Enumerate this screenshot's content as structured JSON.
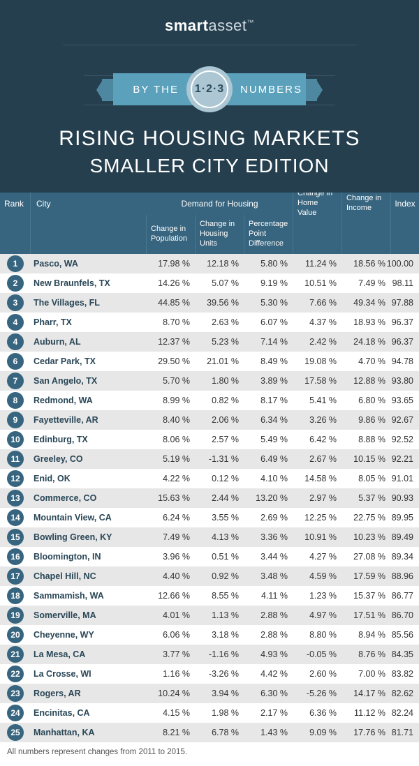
{
  "brand": {
    "bold": "smart",
    "light": "asset",
    "tm": "™"
  },
  "ribbon": {
    "first": "BY THE",
    "second": "NUMBERS",
    "medal": "1·2·3"
  },
  "title": "RISING HOUSING MARKETS",
  "subtitle": "SMALLER CITY EDITION",
  "colors": {
    "header_bg": "#253f4f",
    "table_header_bg": "#37647e",
    "row_even": "#e7e7e7",
    "row_odd": "#ffffff",
    "accent": "#5ba1bc"
  },
  "columns": {
    "rank": "Rank",
    "city": "City",
    "demand": "Demand for Housing",
    "pop": "Change in Population",
    "hu": "Change in Housing Units",
    "ppd": "Percentage Point Difference",
    "home": "Change in Home Value",
    "inc": "Change in Income",
    "idx": "Index"
  },
  "footnote": "All numbers represent changes from 2011 to 2015.",
  "rows": [
    {
      "rank": "1",
      "city": "Pasco, WA",
      "pop": "17.98 %",
      "hu": "12.18 %",
      "ppd": "5.80 %",
      "home": "11.24 %",
      "inc": "18.56 %",
      "idx": "100.00"
    },
    {
      "rank": "2",
      "city": "New Braunfels, TX",
      "pop": "14.26 %",
      "hu": "5.07 %",
      "ppd": "9.19 %",
      "home": "10.51 %",
      "inc": "7.49 %",
      "idx": "98.11"
    },
    {
      "rank": "3",
      "city": "The Villages, FL",
      "pop": "44.85 %",
      "hu": "39.56 %",
      "ppd": "5.30 %",
      "home": "7.66 %",
      "inc": "49.34 %",
      "idx": "97.88"
    },
    {
      "rank": "4",
      "city": "Pharr, TX",
      "pop": "8.70 %",
      "hu": "2.63 %",
      "ppd": "6.07 %",
      "home": "4.37 %",
      "inc": "18.93 %",
      "idx": "96.37"
    },
    {
      "rank": "4",
      "city": "Auburn, AL",
      "pop": "12.37 %",
      "hu": "5.23 %",
      "ppd": "7.14 %",
      "home": "2.42 %",
      "inc": "24.18 %",
      "idx": "96.37"
    },
    {
      "rank": "6",
      "city": "Cedar Park, TX",
      "pop": "29.50 %",
      "hu": "21.01 %",
      "ppd": "8.49 %",
      "home": "19.08 %",
      "inc": "4.70 %",
      "idx": "94.78"
    },
    {
      "rank": "7",
      "city": "San Angelo, TX",
      "pop": "5.70 %",
      "hu": "1.80 %",
      "ppd": "3.89 %",
      "home": "17.58 %",
      "inc": "12.88 %",
      "idx": "93.80"
    },
    {
      "rank": "8",
      "city": "Redmond, WA",
      "pop": "8.99 %",
      "hu": "0.82 %",
      "ppd": "8.17 %",
      "home": "5.41 %",
      "inc": "6.80 %",
      "idx": "93.65"
    },
    {
      "rank": "9",
      "city": "Fayetteville, AR",
      "pop": "8.40 %",
      "hu": "2.06 %",
      "ppd": "6.34 %",
      "home": "3.26 %",
      "inc": "9.86 %",
      "idx": "92.67"
    },
    {
      "rank": "10",
      "city": "Edinburg, TX",
      "pop": "8.06 %",
      "hu": "2.57 %",
      "ppd": "5.49 %",
      "home": "6.42 %",
      "inc": "8.88 %",
      "idx": "92.52"
    },
    {
      "rank": "11",
      "city": "Greeley, CO",
      "pop": "5.19 %",
      "hu": "-1.31 %",
      "ppd": "6.49 %",
      "home": "2.67 %",
      "inc": "10.15 %",
      "idx": "92.21"
    },
    {
      "rank": "12",
      "city": "Enid, OK",
      "pop": "4.22 %",
      "hu": "0.12 %",
      "ppd": "4.10 %",
      "home": "14.58 %",
      "inc": "8.05 %",
      "idx": "91.01"
    },
    {
      "rank": "13",
      "city": "Commerce, CO",
      "pop": "15.63 %",
      "hu": "2.44 %",
      "ppd": "13.20 %",
      "home": "2.97 %",
      "inc": "5.37 %",
      "idx": "90.93"
    },
    {
      "rank": "14",
      "city": "Mountain View, CA",
      "pop": "6.24 %",
      "hu": "3.55 %",
      "ppd": "2.69 %",
      "home": "12.25 %",
      "inc": "22.75 %",
      "idx": "89.95"
    },
    {
      "rank": "15",
      "city": "Bowling Green, KY",
      "pop": "7.49 %",
      "hu": "4.13 %",
      "ppd": "3.36 %",
      "home": "10.91 %",
      "inc": "10.23 %",
      "idx": "89.49"
    },
    {
      "rank": "16",
      "city": "Bloomington, IN",
      "pop": "3.96 %",
      "hu": "0.51 %",
      "ppd": "3.44 %",
      "home": "4.27 %",
      "inc": "27.08 %",
      "idx": "89.34"
    },
    {
      "rank": "17",
      "city": "Chapel Hill, NC",
      "pop": "4.40 %",
      "hu": "0.92 %",
      "ppd": "3.48 %",
      "home": "4.59 %",
      "inc": "17.59 %",
      "idx": "88.96"
    },
    {
      "rank": "18",
      "city": "Sammamish, WA",
      "pop": "12.66 %",
      "hu": "8.55 %",
      "ppd": "4.11 %",
      "home": "1.23 %",
      "inc": "15.37 %",
      "idx": "86.77"
    },
    {
      "rank": "19",
      "city": "Somerville, MA",
      "pop": "4.01 %",
      "hu": "1.13 %",
      "ppd": "2.88 %",
      "home": "4.97 %",
      "inc": "17.51 %",
      "idx": "86.70"
    },
    {
      "rank": "20",
      "city": "Cheyenne, WY",
      "pop": "6.06 %",
      "hu": "3.18 %",
      "ppd": "2.88 %",
      "home": "8.80 %",
      "inc": "8.94 %",
      "idx": "85.56"
    },
    {
      "rank": "21",
      "city": "La Mesa, CA",
      "pop": "3.77 %",
      "hu": "-1.16 %",
      "ppd": "4.93 %",
      "home": "-0.05 %",
      "inc": "8.76 %",
      "idx": "84.35"
    },
    {
      "rank": "22",
      "city": "La Crosse, WI",
      "pop": "1.16 %",
      "hu": "-3.26 %",
      "ppd": "4.42 %",
      "home": "2.60 %",
      "inc": "7.00 %",
      "idx": "83.82"
    },
    {
      "rank": "23",
      "city": "Rogers, AR",
      "pop": "10.24 %",
      "hu": "3.94 %",
      "ppd": "6.30 %",
      "home": "-5.26 %",
      "inc": "14.17 %",
      "idx": "82.62"
    },
    {
      "rank": "24",
      "city": "Encinitas, CA",
      "pop": "4.15 %",
      "hu": "1.98 %",
      "ppd": "2.17 %",
      "home": "6.36 %",
      "inc": "11.12 %",
      "idx": "82.24"
    },
    {
      "rank": "25",
      "city": "Manhattan, KA",
      "pop": "8.21 %",
      "hu": "6.78 %",
      "ppd": "1.43 %",
      "home": "9.09 %",
      "inc": "17.76 %",
      "idx": "81.71"
    }
  ]
}
